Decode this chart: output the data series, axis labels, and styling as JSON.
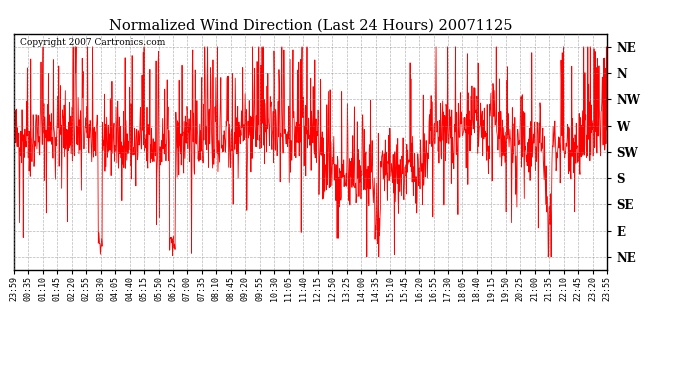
{
  "title": "Normalized Wind Direction (Last 24 Hours) 20071125",
  "copyright_text": "Copyright 2007 Cartronics.com",
  "line_color": "#FF0000",
  "background_color": "#FFFFFF",
  "grid_color": "#888888",
  "ytick_labels": [
    "NE",
    "N",
    "NW",
    "W",
    "SW",
    "S",
    "SE",
    "E",
    "NE"
  ],
  "ytick_values": [
    8,
    7,
    6,
    5,
    4,
    3,
    2,
    1,
    0
  ],
  "ylim": [
    -0.5,
    8.5
  ],
  "xtick_labels": [
    "23:59",
    "00:35",
    "01:10",
    "01:45",
    "02:20",
    "02:55",
    "03:30",
    "04:05",
    "04:40",
    "05:15",
    "05:50",
    "06:25",
    "07:00",
    "07:35",
    "08:10",
    "08:45",
    "09:20",
    "09:55",
    "10:30",
    "11:05",
    "11:40",
    "12:15",
    "12:50",
    "13:25",
    "14:00",
    "14:35",
    "15:10",
    "15:45",
    "16:20",
    "16:55",
    "17:30",
    "18:05",
    "18:40",
    "19:15",
    "19:50",
    "20:25",
    "21:00",
    "21:35",
    "22:10",
    "22:45",
    "23:20",
    "23:55"
  ],
  "seed": 42
}
